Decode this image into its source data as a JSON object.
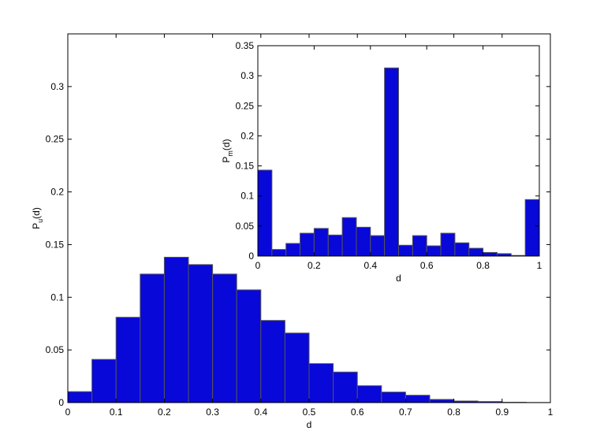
{
  "chart_data": [
    {
      "type": "histogram",
      "color": "#0808d8",
      "edgecolor": "#555555",
      "bins": [
        0,
        0.05,
        0.1,
        0.15,
        0.2,
        0.25,
        0.3,
        0.35,
        0.4,
        0.45,
        0.5,
        0.55,
        0.6,
        0.65,
        0.7,
        0.75,
        0.8,
        0.85,
        0.9,
        0.95,
        1
      ],
      "values": [
        0.0104,
        0.041,
        0.081,
        0.122,
        0.138,
        0.131,
        0.122,
        0.107,
        0.078,
        0.066,
        0.037,
        0.029,
        0.016,
        0.01,
        0.007,
        0.003,
        0.0015,
        0.001,
        0.0003,
        0.0001
      ],
      "xlim": [
        0,
        1
      ],
      "ylim": [
        0,
        0.35
      ],
      "xticks": [
        0,
        0.1,
        0.2,
        0.3,
        0.4,
        0.5,
        0.6,
        0.7,
        0.8,
        0.9,
        1
      ],
      "yticks": [
        0,
        0.05,
        0.1,
        0.15,
        0.2,
        0.25,
        0.3
      ],
      "xlabel": "d",
      "ylabel": {
        "base": "P",
        "subscript": "u",
        "suffix": "(d)"
      }
    },
    {
      "type": "histogram",
      "color": "#0808d8",
      "edgecolor": "#555555",
      "bins": [
        0,
        0.05,
        0.1,
        0.15,
        0.2,
        0.25,
        0.3,
        0.35,
        0.4,
        0.45,
        0.5,
        0.55,
        0.6,
        0.65,
        0.7,
        0.75,
        0.8,
        0.85,
        0.9,
        0.95,
        1
      ],
      "values": [
        0.143,
        0.011,
        0.021,
        0.038,
        0.046,
        0.035,
        0.064,
        0.048,
        0.034,
        0.313,
        0.018,
        0.034,
        0.017,
        0.038,
        0.022,
        0.013,
        0.006,
        0.004,
        0.001,
        0.094
      ],
      "xlim": [
        0,
        1
      ],
      "ylim": [
        0,
        0.35
      ],
      "xticks": [
        0,
        0.2,
        0.4,
        0.6,
        0.8,
        1
      ],
      "yticks": [
        0,
        0.05,
        0.1,
        0.15,
        0.2,
        0.25,
        0.3,
        0.35
      ],
      "xlabel": "d",
      "ylabel": {
        "base": "P",
        "subscript": "m",
        "suffix": "(d)"
      }
    }
  ]
}
